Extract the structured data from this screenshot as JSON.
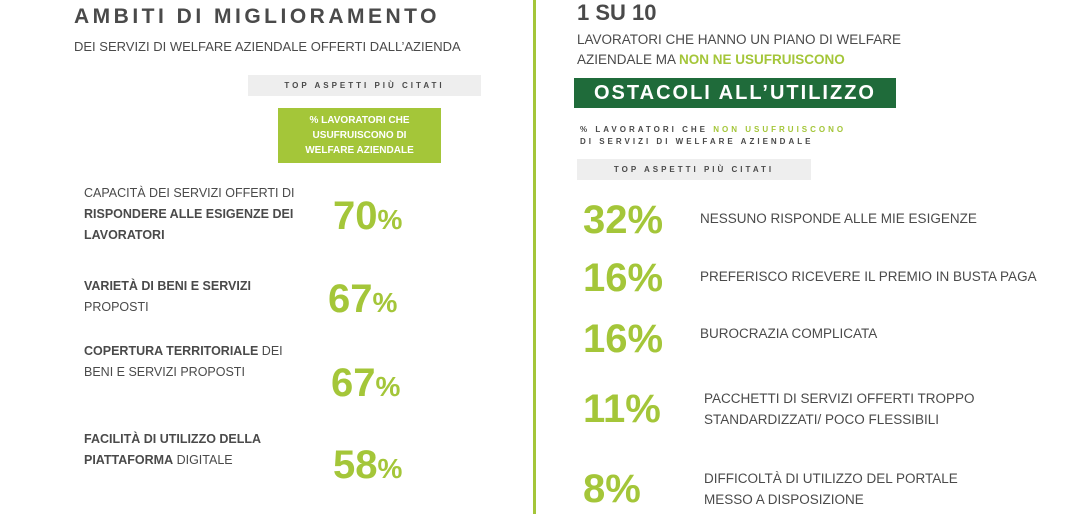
{
  "left": {
    "title": "AMBITI DI MIGLIORAMENTO",
    "subtitle": "DEI SERVIZI DI WELFARE AZIENDALE OFFERTI DALL’AZIENDA",
    "top_label": "TOP ASPETTI PIÙ CITATI",
    "header_box": "% LAVORATORI CHE USUFRUISCONO DI WELFARE AZIENDALE",
    "items": [
      {
        "pre": "CAPACITÀ DEI SERVIZI OFFERTI DI ",
        "bold": "RISPONDERE ALLE ESIGENZE DEI LAVORATORI",
        "post": "",
        "value": "70",
        "unit": "%"
      },
      {
        "pre": "",
        "bold": "VARIETÀ DI BENI E SERVIZI",
        "post": " PROPOSTI",
        "value": "67",
        "unit": "%"
      },
      {
        "pre": "",
        "bold": "COPERTURA TERRITORIALE",
        "post": " DEI BENI E SERVIZI PROPOSTI",
        "value": "67",
        "unit": "%"
      },
      {
        "pre": "",
        "bold": "FACILITÀ DI UTILIZZO DELLA PIATTAFORMA",
        "post": " DIGITALE",
        "value": "58",
        "unit": "%"
      }
    ]
  },
  "right": {
    "title": "1 SU 10",
    "subtitle_line1": "LAVORATORI CHE HANNO UN PIANO DI WELFARE",
    "subtitle_line2_pre": "AZIENDALE MA ",
    "subtitle_line2_highlight": "NON NE USUFRUISCONO",
    "banner": "OSTACOLI ALL’UTILIZZO",
    "caption_pre": "% LAVORATORI CHE ",
    "caption_highlight": "NON USUFRUISCONO",
    "caption_line2": "DI SERVIZI DI WELFARE AZIENDALE",
    "top_label": "TOP ASPETTI PIÙ CITATI",
    "items": [
      {
        "value": "32%",
        "text": "NESSUNO RISPONDE ALLE MIE ESIGENZE"
      },
      {
        "value": "16%",
        "text": "PREFERISCO RICEVERE IL PREMIO IN BUSTA PAGA"
      },
      {
        "value": "16%",
        "text": "BUROCRAZIA COMPLICATA"
      },
      {
        "value": "11%",
        "text": "PACCHETTI DI SERVIZI OFFERTI TROPPO STANDARDIZZATI/ POCO FLESSIBILI"
      },
      {
        "value": "8%",
        "text": "DIFFICOLTÀ DI UTILIZZO DEL PORTALE MESSO A DISPOSIZIONE"
      }
    ]
  },
  "colors": {
    "accent": "#a4c639",
    "banner": "#1f6b3a",
    "text": "#4a4a4a",
    "label_bg": "#eeeeee"
  }
}
